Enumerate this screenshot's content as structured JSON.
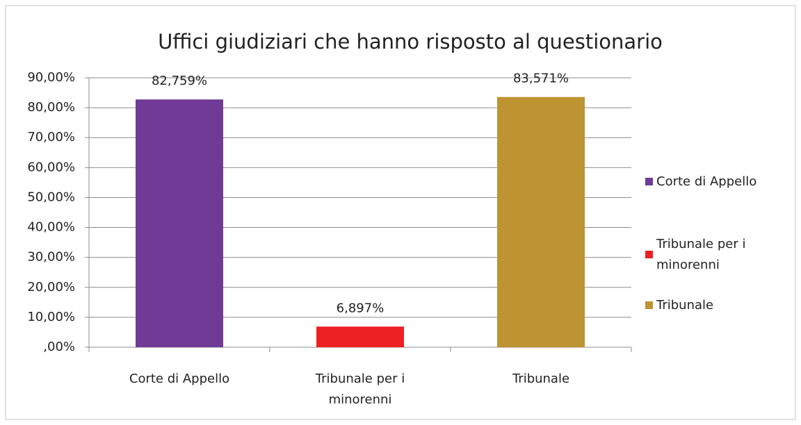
{
  "chart_data": {
    "type": "bar",
    "title": "Uffici giudiziari che hanno risposto al questionario",
    "categories": [
      "Corte di Appello",
      "Tribunale per i minorenni",
      "Tribunale"
    ],
    "values": [
      82.759,
      6.897,
      83.571
    ],
    "value_labels": [
      "82,759%",
      "6,897%",
      "83,571%"
    ],
    "colors": [
      "#6f3b96",
      "#ed2024",
      "#be9331"
    ],
    "ylim": [
      0,
      90
    ],
    "yticks": [
      {
        "value": 0,
        "label": ",00%"
      },
      {
        "value": 10,
        "label": "10,00%"
      },
      {
        "value": 20,
        "label": "20,00%"
      },
      {
        "value": 30,
        "label": "30,00%"
      },
      {
        "value": 40,
        "label": "40,00%"
      },
      {
        "value": 50,
        "label": "50,00%"
      },
      {
        "value": 60,
        "label": "60,00%"
      },
      {
        "value": 70,
        "label": "70,00%"
      },
      {
        "value": 80,
        "label": "80,00%"
      },
      {
        "value": 90,
        "label": "90,00%"
      }
    ],
    "grid": true,
    "legend": "right"
  }
}
